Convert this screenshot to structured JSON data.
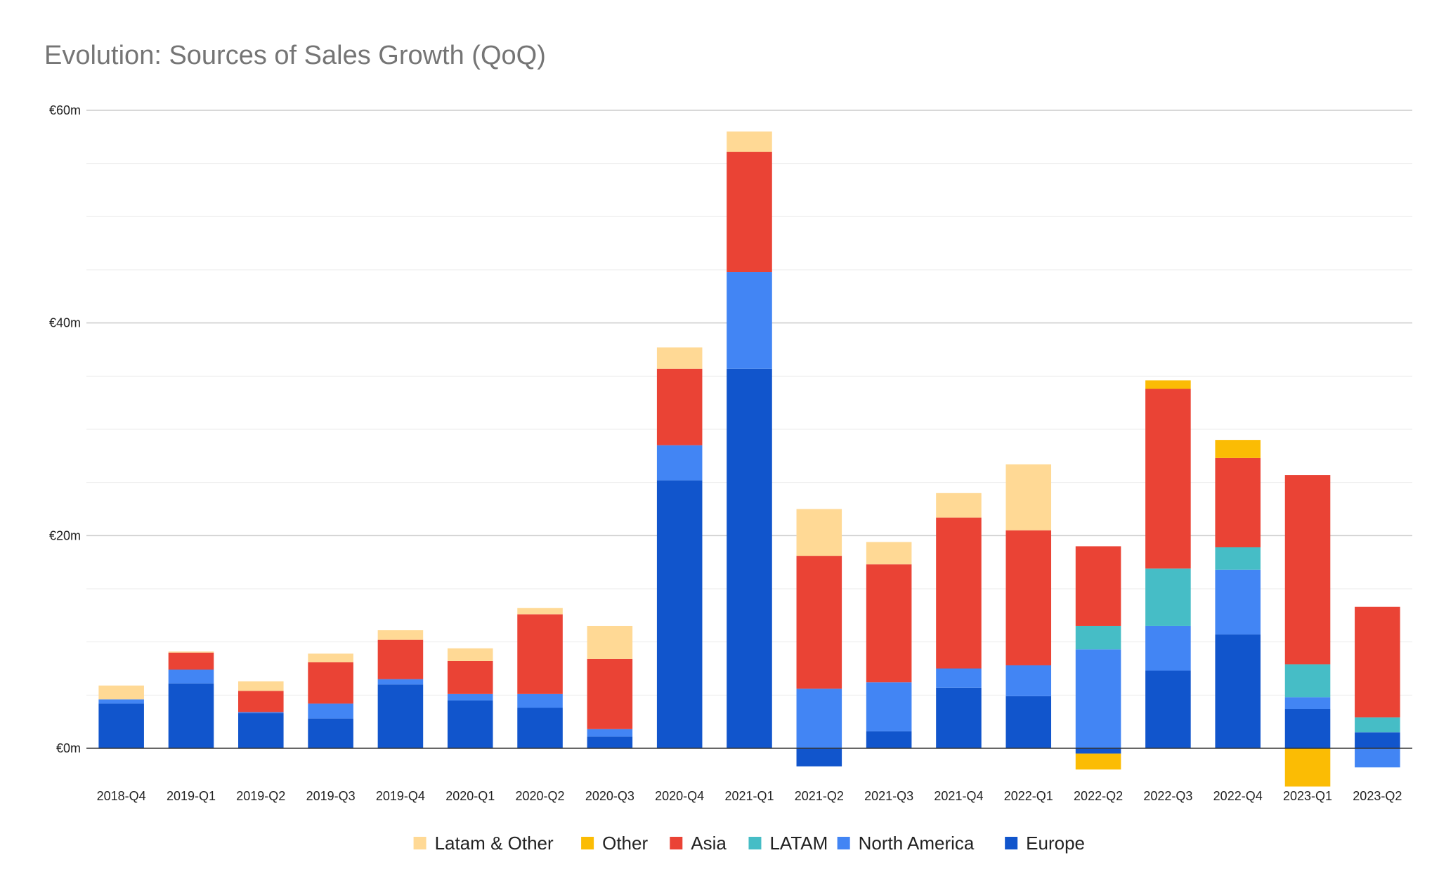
{
  "chart_data": {
    "type": "bar",
    "stacked": true,
    "title": "Evolution: Sources of Sales Growth (QoQ)",
    "xlabel": "",
    "ylabel": "",
    "ylim": [
      -4.5,
      60
    ],
    "y_ticks": [
      {
        "value": 60,
        "label": "€60m"
      },
      {
        "value": 40,
        "label": "€40m"
      },
      {
        "value": 20,
        "label": "€20m"
      },
      {
        "value": 0,
        "label": "€0m"
      }
    ],
    "grid": true,
    "legend": "bottom",
    "categories": [
      "2018-Q4",
      "2019-Q1",
      "2019-Q2",
      "2019-Q3",
      "2019-Q4",
      "2020-Q1",
      "2020-Q2",
      "2020-Q3",
      "2020-Q4",
      "2021-Q1",
      "2021-Q2",
      "2021-Q3",
      "2021-Q4",
      "2022-Q1",
      "2022-Q2",
      "2022-Q3",
      "2022-Q4",
      "2023-Q1",
      "2023-Q2"
    ],
    "series": [
      {
        "name": "Europe",
        "color": "#1155CC",
        "values": [
          4.2,
          6.1,
          3.3,
          2.8,
          6.0,
          4.5,
          3.8,
          1.1,
          25.2,
          35.7,
          -1.7,
          1.6,
          5.7,
          4.9,
          -0.5,
          7.3,
          10.7,
          3.7,
          1.5
        ]
      },
      {
        "name": "North America",
        "color": "#4285F4",
        "values": [
          0.4,
          1.3,
          0.1,
          1.4,
          0.5,
          0.6,
          1.3,
          0.7,
          3.3,
          9.1,
          5.6,
          4.6,
          1.8,
          2.9,
          9.3,
          4.2,
          6.1,
          1.1,
          -1.8
        ]
      },
      {
        "name": "LATAM",
        "color": "#46BDC6",
        "values": [
          0,
          0,
          0,
          0,
          0,
          0,
          0,
          0,
          0,
          0,
          0,
          0,
          0,
          0,
          2.2,
          5.4,
          2.1,
          3.1,
          1.4
        ]
      },
      {
        "name": "Asia",
        "color": "#EA4335",
        "values": [
          0,
          1.6,
          2.0,
          3.9,
          3.7,
          3.1,
          7.5,
          6.6,
          7.2,
          11.3,
          12.5,
          11.1,
          14.2,
          12.7,
          7.5,
          16.9,
          8.4,
          17.8,
          10.4
        ]
      },
      {
        "name": "Other",
        "color": "#FBBC04",
        "values": [
          0,
          0,
          0,
          0,
          0,
          0,
          0,
          0,
          0,
          0,
          0,
          0,
          0,
          0,
          -1.5,
          0.8,
          1.7,
          -3.6,
          0
        ]
      },
      {
        "name": "Latam & Other",
        "color": "#FFD995",
        "values": [
          1.3,
          0.1,
          0.9,
          0.8,
          0.9,
          1.2,
          0.6,
          3.1,
          2.0,
          1.9,
          4.4,
          2.1,
          2.3,
          6.2,
          0,
          0,
          0,
          0,
          0
        ]
      }
    ],
    "legend_order": [
      "Latam & Other",
      "Other",
      "Asia",
      "LATAM",
      "North America",
      "Europe"
    ]
  }
}
